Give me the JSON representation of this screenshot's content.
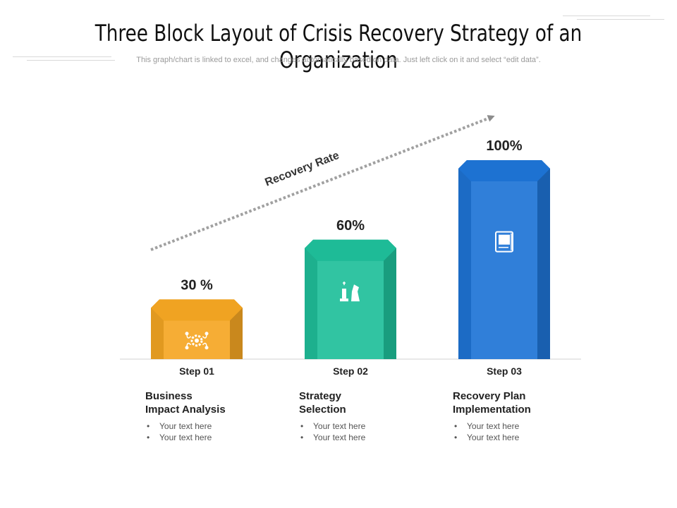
{
  "header": {
    "title": "Three Block Layout of Crisis Recovery Strategy of an Organization",
    "subtitle": "This graph/chart is linked to excel, and changes automatically based on data. Just left click on it and select “edit data”."
  },
  "chart_data": {
    "type": "bar",
    "categories": [
      "Step 01",
      "Step 02",
      "Step 03"
    ],
    "values": [
      30,
      60,
      100
    ],
    "value_labels": [
      "30 %",
      "60%",
      "100%"
    ],
    "ylim": [
      0,
      100
    ],
    "annotation": "Recovery Rate",
    "colors": [
      "#f5a623",
      "#1fbf9a",
      "#1e74d6"
    ],
    "icons": [
      "gear-network-icon",
      "chess-pieces-icon",
      "report-document-icon"
    ]
  },
  "steps": [
    {
      "label": "Step 01",
      "title": "Business\nImpact Analysis",
      "bullets": [
        "Your text here",
        "Your text here"
      ]
    },
    {
      "label": "Step 02",
      "title": "Strategy\nSelection",
      "bullets": [
        "Your text here",
        "Your text here"
      ]
    },
    {
      "label": "Step 03",
      "title": "Recovery Plan\nImplementation",
      "bullets": [
        "Your text here",
        "Your text here"
      ]
    }
  ]
}
